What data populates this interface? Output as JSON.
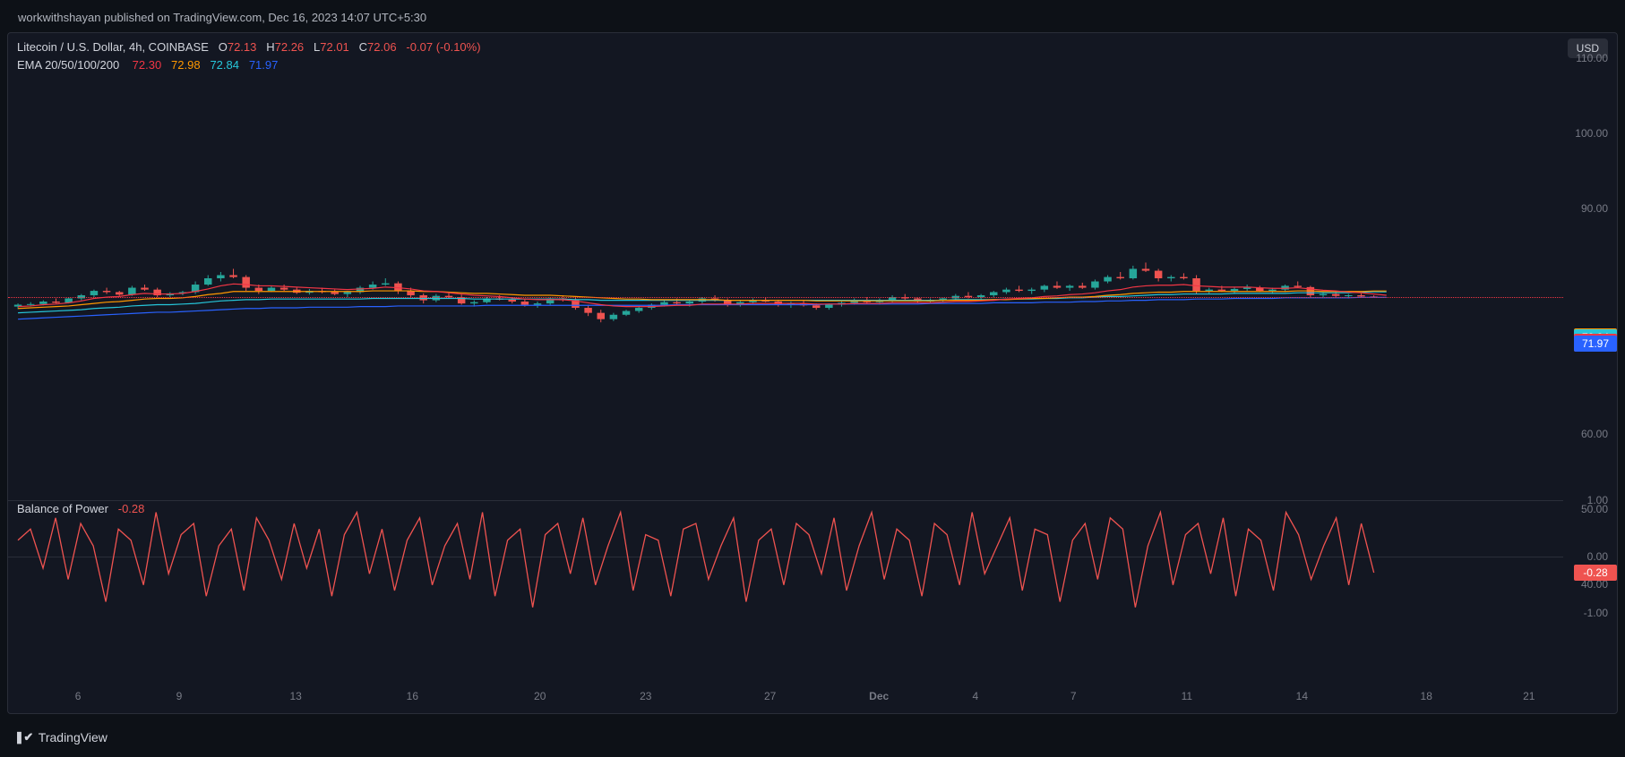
{
  "byline": "workwithshayan published on TradingView.com, Dec 16, 2023 14:07 UTC+5:30",
  "symbol_line": "Litecoin / U.S. Dollar, 4h, COINBASE",
  "ohlc": {
    "o_label": "O",
    "o": "72.13",
    "h_label": "H",
    "h": "72.26",
    "l_label": "L",
    "l": "72.01",
    "c_label": "C",
    "c": "72.06",
    "change": "-0.07",
    "change_pct": "(-0.10%)"
  },
  "ema_label": "EMA 20/50/100/200",
  "ema_vals": {
    "ema20": "72.30",
    "ema50": "72.98",
    "ema100": "72.84",
    "ema200": "71.97"
  },
  "currency_badge": "USD",
  "colors": {
    "background": "#131722",
    "text_muted": "#787b86",
    "up": "#26a69a",
    "down": "#ef5350",
    "ema20": "#f23645",
    "ema50": "#ff9800",
    "ema100": "#26c6da",
    "ema200": "#2962ff",
    "bop": "#ef5350",
    "price_line": "#f23645"
  },
  "price_chart": {
    "ylim": [
      40,
      110
    ],
    "yticks": [
      110.0,
      100.0,
      90.0,
      60.0,
      50.0,
      40.0
    ],
    "tags": [
      {
        "value": "72.98",
        "color": "#ff9800"
      },
      {
        "value": "72.84",
        "color": "#26c6da"
      },
      {
        "value": "72.30",
        "color": "#f23645"
      },
      {
        "value": "72.06",
        "color": "#ef5350"
      },
      {
        "value": "71.97",
        "color": "#2962ff"
      }
    ],
    "x_labels": [
      "6",
      "9",
      "13",
      "16",
      "20",
      "23",
      "27",
      "Dec",
      "4",
      "7",
      "11",
      "14",
      "18",
      "21"
    ],
    "x_label_positions_pct": [
      4.5,
      11.0,
      18.5,
      26.0,
      34.2,
      41.0,
      49.0,
      56.0,
      62.2,
      68.5,
      75.8,
      83.2,
      91.2,
      97.8
    ],
    "candles": [
      {
        "o": 70.5,
        "h": 71.0,
        "l": 70.1,
        "c": 70.8
      },
      {
        "o": 70.8,
        "h": 71.2,
        "l": 70.5,
        "c": 70.9
      },
      {
        "o": 70.9,
        "h": 71.5,
        "l": 70.7,
        "c": 71.3
      },
      {
        "o": 71.3,
        "h": 71.8,
        "l": 71.0,
        "c": 71.1
      },
      {
        "o": 71.1,
        "h": 72.0,
        "l": 71.0,
        "c": 71.8
      },
      {
        "o": 71.8,
        "h": 72.5,
        "l": 71.5,
        "c": 72.3
      },
      {
        "o": 72.3,
        "h": 73.2,
        "l": 72.0,
        "c": 73.0
      },
      {
        "o": 73.0,
        "h": 73.5,
        "l": 72.5,
        "c": 72.8
      },
      {
        "o": 72.8,
        "h": 73.0,
        "l": 72.2,
        "c": 72.4
      },
      {
        "o": 72.4,
        "h": 73.8,
        "l": 72.2,
        "c": 73.5
      },
      {
        "o": 73.5,
        "h": 74.0,
        "l": 73.0,
        "c": 73.2
      },
      {
        "o": 73.2,
        "h": 73.5,
        "l": 72.0,
        "c": 72.3
      },
      {
        "o": 72.3,
        "h": 72.8,
        "l": 72.0,
        "c": 72.6
      },
      {
        "o": 72.6,
        "h": 73.0,
        "l": 72.3,
        "c": 72.8
      },
      {
        "o": 72.8,
        "h": 74.5,
        "l": 72.5,
        "c": 74.0
      },
      {
        "o": 74.0,
        "h": 75.5,
        "l": 73.8,
        "c": 75.0
      },
      {
        "o": 75.0,
        "h": 76.0,
        "l": 74.5,
        "c": 75.5
      },
      {
        "o": 75.5,
        "h": 76.5,
        "l": 75.0,
        "c": 75.2
      },
      {
        "o": 75.2,
        "h": 75.5,
        "l": 73.0,
        "c": 73.5
      },
      {
        "o": 73.5,
        "h": 74.0,
        "l": 72.5,
        "c": 73.0
      },
      {
        "o": 73.0,
        "h": 73.8,
        "l": 72.8,
        "c": 73.5
      },
      {
        "o": 73.5,
        "h": 74.0,
        "l": 73.0,
        "c": 73.2
      },
      {
        "o": 73.2,
        "h": 73.5,
        "l": 72.5,
        "c": 72.7
      },
      {
        "o": 72.7,
        "h": 73.3,
        "l": 72.4,
        "c": 73.0
      },
      {
        "o": 73.0,
        "h": 73.5,
        "l": 72.6,
        "c": 72.8
      },
      {
        "o": 72.8,
        "h": 73.2,
        "l": 72.3,
        "c": 72.5
      },
      {
        "o": 72.5,
        "h": 73.0,
        "l": 72.0,
        "c": 72.8
      },
      {
        "o": 72.8,
        "h": 73.8,
        "l": 72.5,
        "c": 73.5
      },
      {
        "o": 73.5,
        "h": 74.5,
        "l": 73.2,
        "c": 74.0
      },
      {
        "o": 74.0,
        "h": 75.0,
        "l": 73.8,
        "c": 74.2
      },
      {
        "o": 74.2,
        "h": 74.5,
        "l": 72.5,
        "c": 73.0
      },
      {
        "o": 73.0,
        "h": 73.5,
        "l": 72.0,
        "c": 72.3
      },
      {
        "o": 72.3,
        "h": 72.6,
        "l": 71.0,
        "c": 71.5
      },
      {
        "o": 71.5,
        "h": 72.5,
        "l": 71.2,
        "c": 72.2
      },
      {
        "o": 72.2,
        "h": 72.8,
        "l": 71.8,
        "c": 72.0
      },
      {
        "o": 72.0,
        "h": 72.4,
        "l": 70.8,
        "c": 71.0
      },
      {
        "o": 71.0,
        "h": 71.5,
        "l": 70.5,
        "c": 71.2
      },
      {
        "o": 71.2,
        "h": 72.0,
        "l": 71.0,
        "c": 71.8
      },
      {
        "o": 71.8,
        "h": 72.3,
        "l": 71.5,
        "c": 71.6
      },
      {
        "o": 71.6,
        "h": 72.0,
        "l": 71.0,
        "c": 71.3
      },
      {
        "o": 71.3,
        "h": 71.8,
        "l": 70.5,
        "c": 70.8
      },
      {
        "o": 70.8,
        "h": 71.3,
        "l": 70.3,
        "c": 71.0
      },
      {
        "o": 71.0,
        "h": 72.0,
        "l": 70.8,
        "c": 71.8
      },
      {
        "o": 71.8,
        "h": 72.3,
        "l": 71.3,
        "c": 71.5
      },
      {
        "o": 71.5,
        "h": 72.0,
        "l": 70.0,
        "c": 70.3
      },
      {
        "o": 70.3,
        "h": 70.8,
        "l": 69.0,
        "c": 69.5
      },
      {
        "o": 69.5,
        "h": 70.0,
        "l": 68.0,
        "c": 68.5
      },
      {
        "o": 68.5,
        "h": 69.5,
        "l": 68.2,
        "c": 69.2
      },
      {
        "o": 69.2,
        "h": 70.0,
        "l": 69.0,
        "c": 69.8
      },
      {
        "o": 69.8,
        "h": 70.5,
        "l": 69.5,
        "c": 70.3
      },
      {
        "o": 70.3,
        "h": 71.0,
        "l": 70.0,
        "c": 70.8
      },
      {
        "o": 70.8,
        "h": 71.5,
        "l": 70.5,
        "c": 71.2
      },
      {
        "o": 71.2,
        "h": 71.8,
        "l": 70.8,
        "c": 71.0
      },
      {
        "o": 71.0,
        "h": 71.5,
        "l": 70.5,
        "c": 71.3
      },
      {
        "o": 71.3,
        "h": 72.0,
        "l": 71.0,
        "c": 71.8
      },
      {
        "o": 71.8,
        "h": 72.3,
        "l": 71.3,
        "c": 71.5
      },
      {
        "o": 71.5,
        "h": 71.8,
        "l": 70.5,
        "c": 70.8
      },
      {
        "o": 70.8,
        "h": 71.5,
        "l": 70.5,
        "c": 71.2
      },
      {
        "o": 71.2,
        "h": 71.8,
        "l": 71.0,
        "c": 71.5
      },
      {
        "o": 71.5,
        "h": 72.0,
        "l": 71.2,
        "c": 71.3
      },
      {
        "o": 71.3,
        "h": 71.6,
        "l": 70.5,
        "c": 70.8
      },
      {
        "o": 70.8,
        "h": 71.3,
        "l": 70.3,
        "c": 71.0
      },
      {
        "o": 71.0,
        "h": 71.5,
        "l": 70.5,
        "c": 70.7
      },
      {
        "o": 70.7,
        "h": 71.0,
        "l": 70.0,
        "c": 70.3
      },
      {
        "o": 70.3,
        "h": 71.0,
        "l": 70.0,
        "c": 70.8
      },
      {
        "o": 70.8,
        "h": 71.3,
        "l": 70.5,
        "c": 71.1
      },
      {
        "o": 71.1,
        "h": 71.8,
        "l": 70.8,
        "c": 71.5
      },
      {
        "o": 71.5,
        "h": 72.0,
        "l": 71.0,
        "c": 71.2
      },
      {
        "o": 71.2,
        "h": 71.8,
        "l": 70.8,
        "c": 71.5
      },
      {
        "o": 71.5,
        "h": 72.3,
        "l": 71.2,
        "c": 72.0
      },
      {
        "o": 72.0,
        "h": 72.5,
        "l": 71.5,
        "c": 71.8
      },
      {
        "o": 71.8,
        "h": 72.0,
        "l": 71.0,
        "c": 71.3
      },
      {
        "o": 71.3,
        "h": 71.8,
        "l": 71.0,
        "c": 71.5
      },
      {
        "o": 71.5,
        "h": 72.0,
        "l": 71.2,
        "c": 71.8
      },
      {
        "o": 71.8,
        "h": 72.5,
        "l": 71.5,
        "c": 72.2
      },
      {
        "o": 72.2,
        "h": 72.8,
        "l": 71.8,
        "c": 72.0
      },
      {
        "o": 72.0,
        "h": 72.5,
        "l": 71.5,
        "c": 72.3
      },
      {
        "o": 72.3,
        "h": 73.0,
        "l": 72.0,
        "c": 72.8
      },
      {
        "o": 72.8,
        "h": 73.5,
        "l": 72.5,
        "c": 73.2
      },
      {
        "o": 73.2,
        "h": 73.8,
        "l": 72.8,
        "c": 73.0
      },
      {
        "o": 73.0,
        "h": 73.5,
        "l": 72.5,
        "c": 73.2
      },
      {
        "o": 73.2,
        "h": 74.0,
        "l": 72.8,
        "c": 73.8
      },
      {
        "o": 73.8,
        "h": 74.5,
        "l": 73.3,
        "c": 73.5
      },
      {
        "o": 73.5,
        "h": 74.0,
        "l": 73.0,
        "c": 73.8
      },
      {
        "o": 73.8,
        "h": 74.3,
        "l": 73.3,
        "c": 73.5
      },
      {
        "o": 73.5,
        "h": 74.8,
        "l": 73.2,
        "c": 74.5
      },
      {
        "o": 74.5,
        "h": 75.5,
        "l": 74.2,
        "c": 75.2
      },
      {
        "o": 75.2,
        "h": 76.0,
        "l": 74.8,
        "c": 75.0
      },
      {
        "o": 75.0,
        "h": 77.0,
        "l": 74.8,
        "c": 76.5
      },
      {
        "o": 76.5,
        "h": 77.5,
        "l": 76.0,
        "c": 76.2
      },
      {
        "o": 76.2,
        "h": 76.5,
        "l": 74.5,
        "c": 75.0
      },
      {
        "o": 75.0,
        "h": 75.5,
        "l": 74.5,
        "c": 75.2
      },
      {
        "o": 75.2,
        "h": 75.8,
        "l": 74.8,
        "c": 75.0
      },
      {
        "o": 75.0,
        "h": 75.5,
        "l": 72.5,
        "c": 73.0
      },
      {
        "o": 73.0,
        "h": 73.5,
        "l": 72.5,
        "c": 73.2
      },
      {
        "o": 73.2,
        "h": 73.8,
        "l": 72.8,
        "c": 73.0
      },
      {
        "o": 73.0,
        "h": 73.5,
        "l": 72.5,
        "c": 73.3
      },
      {
        "o": 73.3,
        "h": 74.0,
        "l": 73.0,
        "c": 73.5
      },
      {
        "o": 73.5,
        "h": 73.8,
        "l": 72.8,
        "c": 73.0
      },
      {
        "o": 73.0,
        "h": 73.5,
        "l": 72.5,
        "c": 73.2
      },
      {
        "o": 73.2,
        "h": 74.0,
        "l": 72.8,
        "c": 73.8
      },
      {
        "o": 73.8,
        "h": 74.5,
        "l": 73.5,
        "c": 73.6
      },
      {
        "o": 73.6,
        "h": 73.8,
        "l": 72.0,
        "c": 72.3
      },
      {
        "o": 72.3,
        "h": 72.8,
        "l": 72.0,
        "c": 72.5
      },
      {
        "o": 72.5,
        "h": 73.0,
        "l": 72.0,
        "c": 72.2
      },
      {
        "o": 72.2,
        "h": 72.5,
        "l": 71.8,
        "c": 72.3
      },
      {
        "o": 72.3,
        "h": 72.6,
        "l": 72.0,
        "c": 72.1
      },
      {
        "o": 72.1,
        "h": 72.3,
        "l": 72.0,
        "c": 72.06
      }
    ],
    "ema20_line": [
      70.5,
      70.6,
      70.8,
      70.9,
      71.1,
      71.4,
      71.8,
      72.0,
      72.1,
      72.4,
      72.6,
      72.5,
      72.5,
      72.6,
      72.9,
      73.3,
      73.8,
      74.1,
      74.0,
      73.8,
      73.8,
      73.7,
      73.6,
      73.5,
      73.4,
      73.3,
      73.2,
      73.3,
      73.4,
      73.6,
      73.5,
      73.3,
      73.0,
      72.9,
      72.7,
      72.5,
      72.3,
      72.2,
      72.1,
      71.9,
      71.7,
      71.6,
      71.6,
      71.6,
      71.4,
      71.1,
      70.8,
      70.6,
      70.5,
      70.5,
      70.5,
      70.6,
      70.7,
      70.7,
      70.9,
      70.9,
      70.9,
      70.9,
      71.0,
      71.0,
      71.0,
      71.0,
      71.0,
      70.9,
      70.9,
      70.9,
      71.0,
      71.0,
      71.0,
      71.1,
      71.1,
      71.1,
      71.1,
      71.2,
      71.3,
      71.3,
      71.4,
      71.5,
      71.7,
      71.8,
      71.9,
      72.1,
      72.2,
      72.4,
      72.5,
      72.7,
      73.0,
      73.2,
      73.6,
      73.8,
      73.9,
      73.9,
      74.0,
      73.8,
      73.7,
      73.6,
      73.6,
      73.6,
      73.5,
      73.4,
      73.4,
      73.5,
      73.3,
      73.1,
      73.0,
      72.8,
      72.7,
      72.5,
      72.3
    ],
    "ema50_line": [
      70.2,
      70.3,
      70.4,
      70.5,
      70.6,
      70.8,
      71.0,
      71.2,
      71.3,
      71.5,
      71.7,
      71.8,
      71.8,
      71.9,
      72.1,
      72.4,
      72.6,
      72.9,
      72.9,
      72.9,
      72.9,
      72.9,
      72.9,
      72.9,
      72.9,
      72.9,
      72.9,
      72.9,
      73.0,
      73.0,
      73.0,
      73.0,
      72.9,
      72.9,
      72.8,
      72.7,
      72.6,
      72.6,
      72.5,
      72.4,
      72.3,
      72.3,
      72.3,
      72.2,
      72.1,
      72.0,
      71.9,
      71.8,
      71.7,
      71.7,
      71.6,
      71.6,
      71.6,
      71.6,
      71.6,
      71.6,
      71.5,
      71.5,
      71.5,
      71.5,
      71.5,
      71.5,
      71.5,
      71.4,
      71.4,
      71.4,
      71.4,
      71.4,
      71.4,
      71.4,
      71.4,
      71.4,
      71.4,
      71.5,
      71.5,
      71.5,
      71.5,
      71.6,
      71.6,
      71.7,
      71.8,
      71.8,
      71.9,
      72.0,
      72.0,
      72.1,
      72.3,
      72.4,
      72.6,
      72.7,
      72.8,
      72.8,
      72.9,
      72.9,
      72.9,
      72.9,
      72.9,
      72.9,
      72.9,
      72.9,
      72.9,
      73.0,
      73.0,
      72.9,
      72.9,
      72.9,
      72.9,
      72.98,
      72.98
    ],
    "ema100_line": [
      69.5,
      69.6,
      69.7,
      69.8,
      69.9,
      70.0,
      70.2,
      70.3,
      70.4,
      70.6,
      70.7,
      70.8,
      70.8,
      70.9,
      71.0,
      71.2,
      71.4,
      71.5,
      71.6,
      71.6,
      71.7,
      71.7,
      71.7,
      71.7,
      71.7,
      71.7,
      71.7,
      71.7,
      71.8,
      71.8,
      71.8,
      71.8,
      71.8,
      71.8,
      71.8,
      71.8,
      71.7,
      71.7,
      71.7,
      71.7,
      71.7,
      71.7,
      71.7,
      71.7,
      71.6,
      71.6,
      71.5,
      71.5,
      71.5,
      71.5,
      71.5,
      71.5,
      71.5,
      71.5,
      71.5,
      71.5,
      71.5,
      71.5,
      71.5,
      71.5,
      71.5,
      71.5,
      71.5,
      71.5,
      71.5,
      71.5,
      71.5,
      71.5,
      71.5,
      71.5,
      71.5,
      71.5,
      71.5,
      71.5,
      71.6,
      71.6,
      71.6,
      71.6,
      71.7,
      71.7,
      71.7,
      71.8,
      71.8,
      71.9,
      71.9,
      72.0,
      72.1,
      72.1,
      72.2,
      72.3,
      72.4,
      72.4,
      72.5,
      72.5,
      72.5,
      72.5,
      72.6,
      72.6,
      72.6,
      72.6,
      72.6,
      72.7,
      72.7,
      72.7,
      72.7,
      72.7,
      72.8,
      72.84,
      72.84
    ],
    "ema200_line": [
      68.5,
      68.6,
      68.7,
      68.8,
      68.9,
      69.0,
      69.1,
      69.2,
      69.3,
      69.4,
      69.5,
      69.6,
      69.6,
      69.7,
      69.8,
      69.9,
      70.0,
      70.1,
      70.2,
      70.2,
      70.3,
      70.3,
      70.3,
      70.4,
      70.4,
      70.4,
      70.4,
      70.5,
      70.5,
      70.5,
      70.6,
      70.6,
      70.6,
      70.6,
      70.6,
      70.6,
      70.6,
      70.7,
      70.7,
      70.7,
      70.7,
      70.7,
      70.7,
      70.7,
      70.7,
      70.7,
      70.7,
      70.7,
      70.7,
      70.7,
      70.7,
      70.7,
      70.8,
      70.8,
      70.8,
      70.8,
      70.8,
      70.8,
      70.8,
      70.8,
      70.8,
      70.8,
      70.8,
      70.8,
      70.9,
      70.9,
      70.9,
      70.9,
      70.9,
      70.9,
      70.9,
      70.9,
      71.0,
      71.0,
      71.0,
      71.0,
      71.0,
      71.1,
      71.1,
      71.1,
      71.1,
      71.2,
      71.2,
      71.2,
      71.3,
      71.3,
      71.4,
      71.4,
      71.5,
      71.5,
      71.6,
      71.6,
      71.6,
      71.7,
      71.7,
      71.7,
      71.8,
      71.8,
      71.8,
      71.8,
      71.9,
      71.9,
      71.9,
      71.9,
      71.9,
      71.9,
      71.97,
      71.97,
      71.97
    ]
  },
  "bop": {
    "label": "Balance of Power",
    "value": "-0.28",
    "ylim": [
      -1.0,
      1.0
    ],
    "yticks": [
      1.0,
      0.0,
      -1.0
    ],
    "tag": {
      "value": "-0.28",
      "color": "#ef5350"
    },
    "data": [
      0.3,
      0.5,
      -0.2,
      0.7,
      -0.4,
      0.6,
      0.2,
      -0.8,
      0.5,
      0.3,
      -0.5,
      0.8,
      -0.3,
      0.4,
      0.6,
      -0.7,
      0.2,
      0.5,
      -0.6,
      0.7,
      0.3,
      -0.4,
      0.6,
      -0.2,
      0.5,
      -0.7,
      0.4,
      0.8,
      -0.3,
      0.5,
      -0.6,
      0.3,
      0.7,
      -0.5,
      0.2,
      0.6,
      -0.4,
      0.8,
      -0.7,
      0.3,
      0.5,
      -0.9,
      0.4,
      0.6,
      -0.3,
      0.7,
      -0.5,
      0.2,
      0.8,
      -0.6,
      0.4,
      0.3,
      -0.7,
      0.5,
      0.6,
      -0.4,
      0.2,
      0.7,
      -0.8,
      0.3,
      0.5,
      -0.5,
      0.6,
      0.4,
      -0.3,
      0.7,
      -0.6,
      0.2,
      0.8,
      -0.4,
      0.5,
      0.3,
      -0.7,
      0.6,
      0.4,
      -0.5,
      0.8,
      -0.3,
      0.2,
      0.7,
      -0.6,
      0.5,
      0.4,
      -0.8,
      0.3,
      0.6,
      -0.4,
      0.7,
      0.5,
      -0.9,
      0.2,
      0.8,
      -0.5,
      0.4,
      0.6,
      -0.3,
      0.7,
      -0.7,
      0.5,
      0.3,
      -0.6,
      0.8,
      0.4,
      -0.4,
      0.2,
      0.7,
      -0.5,
      0.6,
      -0.28
    ]
  },
  "footer": "TradingView"
}
